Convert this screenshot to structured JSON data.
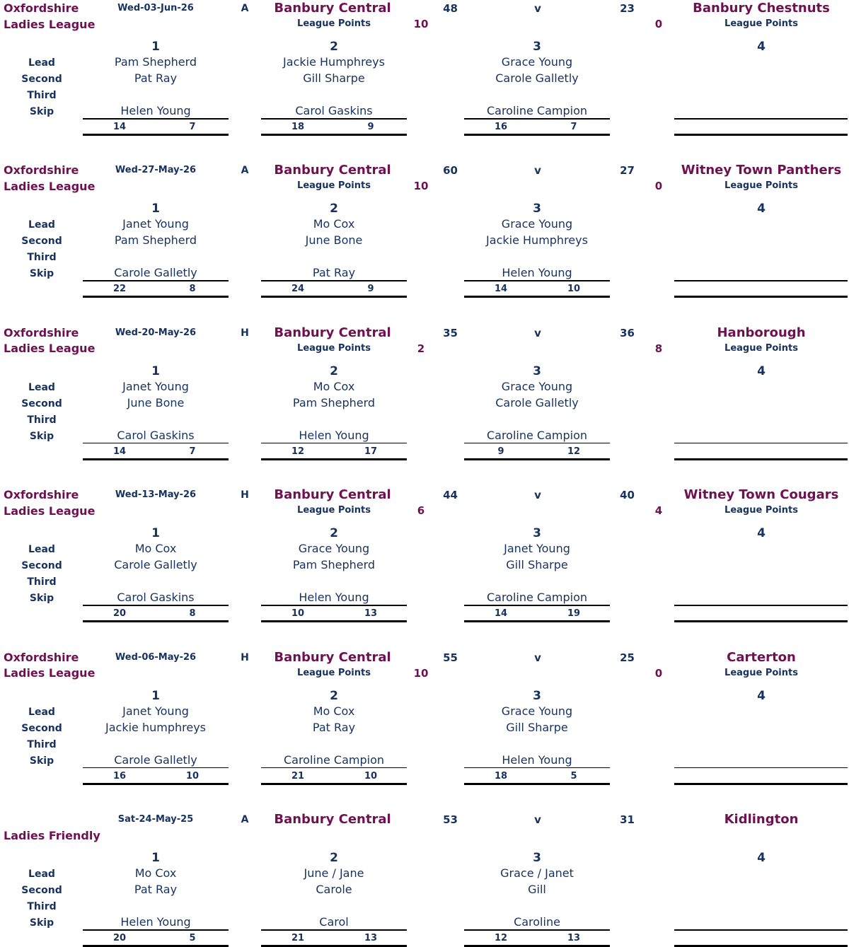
{
  "labels": {
    "positions": [
      "Lead",
      "Second",
      "Third",
      "Skip"
    ],
    "versus": "v",
    "league_points": "League Points",
    "rink_numbers": [
      1,
      2,
      3,
      4
    ]
  },
  "matches": [
    {
      "competition": [
        "Oxfordshire",
        "Ladies League"
      ],
      "date": "Wed-03-Jun-26",
      "venue": "A",
      "home_team": "Banbury Central",
      "home_score": 48,
      "away_score": 23,
      "away_team": "Banbury Chestnuts",
      "points": [
        10,
        0
      ],
      "rinks": [
        {
          "lead": "Pam Shepherd",
          "second": "Pat Ray",
          "skip": "Helen Young",
          "shots": [
            14,
            7
          ]
        },
        {
          "lead": "Jackie Humphreys",
          "second": "Gill Sharpe",
          "skip": "Carol Gaskins",
          "shots": [
            18,
            9
          ]
        },
        {
          "lead": "Grace Young",
          "second": "Carole Galletly",
          "skip": "Caroline Campion",
          "shots": [
            16,
            7
          ]
        }
      ]
    },
    {
      "competition": [
        "Oxfordshire",
        "Ladies League"
      ],
      "date": "Wed-27-May-26",
      "venue": "A",
      "home_team": "Banbury Central",
      "home_score": 60,
      "away_score": 27,
      "away_team": "Witney Town Panthers",
      "points": [
        10,
        0
      ],
      "rinks": [
        {
          "lead": "Janet Young",
          "second": "Pam Shepherd",
          "skip": "Carole Galletly",
          "shots": [
            22,
            8
          ]
        },
        {
          "lead": "Mo Cox",
          "second": "June Bone",
          "skip": "Pat Ray",
          "shots": [
            24,
            9
          ]
        },
        {
          "lead": "Grace Young",
          "second": "Jackie Humphreys",
          "skip": "Helen Young",
          "shots": [
            14,
            10
          ]
        }
      ]
    },
    {
      "competition": [
        "Oxfordshire",
        "Ladies League"
      ],
      "date": "Wed-20-May-26",
      "venue": "H",
      "home_team": "Banbury Central",
      "home_score": 35,
      "away_score": 36,
      "away_team": "Hanborough",
      "points": [
        2,
        8
      ],
      "rinks": [
        {
          "lead": "Janet Young",
          "second": "June Bone",
          "skip": "Carol Gaskins",
          "shots": [
            14,
            7
          ]
        },
        {
          "lead": "Mo Cox",
          "second": "Pam Shepherd",
          "skip": "Helen Young",
          "shots": [
            12,
            17
          ]
        },
        {
          "lead": "Grace Young",
          "second": "Carole Galletly",
          "skip": "Caroline Campion",
          "shots": [
            9,
            12
          ]
        }
      ]
    },
    {
      "competition": [
        "Oxfordshire",
        "Ladies League"
      ],
      "date": "Wed-13-May-26",
      "venue": "H",
      "home_team": "Banbury Central",
      "home_score": 44,
      "away_score": 40,
      "away_team": "Witney Town Cougars",
      "points": [
        6,
        4
      ],
      "rinks": [
        {
          "lead": "Mo Cox",
          "second": "Carole Galletly",
          "skip": "Carol Gaskins",
          "shots": [
            20,
            8
          ]
        },
        {
          "lead": "Grace Young",
          "second": "Pam Shepherd",
          "skip": "Helen Young",
          "shots": [
            10,
            13
          ]
        },
        {
          "lead": "Janet Young",
          "second": "Gill Sharpe",
          "skip": "Caroline Campion",
          "shots": [
            14,
            19
          ]
        }
      ]
    },
    {
      "competition": [
        "Oxfordshire",
        "Ladies League"
      ],
      "date": "Wed-06-May-26",
      "venue": "H",
      "home_team": "Banbury Central",
      "home_score": 55,
      "away_score": 25,
      "away_team": "Carterton",
      "points": [
        10,
        0
      ],
      "rinks": [
        {
          "lead": "Janet Young",
          "second": "Jackie humphreys",
          "skip": "Carole Galletly",
          "shots": [
            16,
            10
          ]
        },
        {
          "lead": "Mo Cox",
          "second": "Pat Ray",
          "skip": "Caroline Campion",
          "shots": [
            21,
            10
          ]
        },
        {
          "lead": "Grace Young",
          "second": "Gill Sharpe",
          "skip": "Helen Young",
          "shots": [
            18,
            5
          ]
        }
      ]
    },
    {
      "competition": [
        "Ladies Friendly"
      ],
      "date": "Sat-24-May-25",
      "venue": "A",
      "home_team": "Banbury Central",
      "home_score": 53,
      "away_score": 31,
      "away_team": "Kidlington",
      "rinks": [
        {
          "lead": "Mo Cox",
          "second": "Pat Ray",
          "skip": "Helen Young",
          "shots": [
            20,
            5
          ]
        },
        {
          "lead": "June / Jane",
          "second": "Carole",
          "skip": "Carol",
          "shots": [
            21,
            13
          ]
        },
        {
          "lead": "Grace / Janet",
          "second": "Gill",
          "skip": "Caroline",
          "shots": [
            12,
            13
          ]
        }
      ]
    }
  ]
}
